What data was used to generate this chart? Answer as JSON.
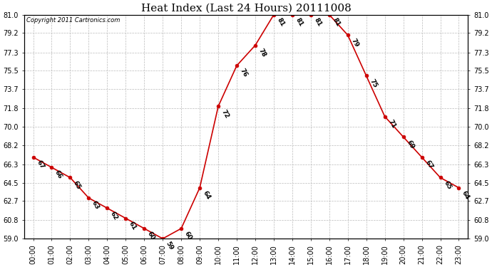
{
  "title": "Heat Index (Last 24 Hours) 20111008",
  "copyright": "Copyright 2011 Cartronics.com",
  "hours": [
    "00:00",
    "01:00",
    "02:00",
    "03:00",
    "04:00",
    "05:00",
    "06:00",
    "07:00",
    "08:00",
    "09:00",
    "10:00",
    "11:00",
    "12:00",
    "13:00",
    "14:00",
    "15:00",
    "16:00",
    "17:00",
    "18:00",
    "19:00",
    "20:00",
    "21:00",
    "22:00",
    "23:00"
  ],
  "values": [
    67,
    66,
    65,
    63,
    62,
    61,
    60,
    59,
    60,
    64,
    72,
    76,
    78,
    81,
    81,
    81,
    81,
    79,
    75,
    71,
    69,
    67,
    65,
    64
  ],
  "ylim": [
    59.0,
    81.0
  ],
  "yticks": [
    59.0,
    60.8,
    62.7,
    64.5,
    66.3,
    68.2,
    70.0,
    71.8,
    73.7,
    75.5,
    77.3,
    79.2,
    81.0
  ],
  "ytick_labels": [
    "59.0",
    "60.8",
    "62.7",
    "64.5",
    "66.3",
    "68.2",
    "70.0",
    "71.8",
    "73.7",
    "75.5",
    "77.3",
    "79.2",
    "81.0"
  ],
  "line_color": "#cc0000",
  "marker_color": "#cc0000",
  "bg_color": "white",
  "grid_color": "#bbbbbb",
  "title_fontsize": 11,
  "label_fontsize": 7,
  "annot_fontsize": 6.5,
  "copyright_fontsize": 6
}
